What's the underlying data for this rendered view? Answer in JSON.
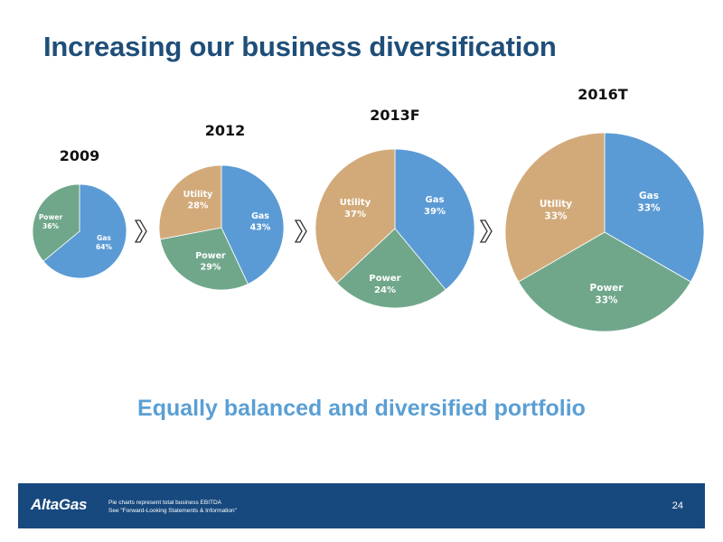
{
  "slide": {
    "title": "Increasing our business diversification",
    "subtitle": "Equally balanced and diversified portfolio",
    "page_number": "24"
  },
  "footer": {
    "logo_text": "AltaGas",
    "notes": [
      "Pie charts represent total business EBITDA",
      "See \"Forward-Looking Statements & Information\""
    ]
  },
  "colors": {
    "Gas": "#5b9bd5",
    "Power": "#70a78b",
    "Utility": "#d2aa7a",
    "title": "#1f4e79",
    "subtitle": "#5a9fd4",
    "footer_bar": "#17497e"
  },
  "chart_data": [
    {
      "type": "pie",
      "title": "2009",
      "slices": [
        {
          "label": "Gas",
          "value": 64,
          "display": "64%"
        },
        {
          "label": "Power",
          "value": 36,
          "display": "36%"
        }
      ]
    },
    {
      "type": "pie",
      "title": "2012",
      "slices": [
        {
          "label": "Gas",
          "value": 43,
          "display": "43%"
        },
        {
          "label": "Power",
          "value": 29,
          "display": "29%"
        },
        {
          "label": "Utility",
          "value": 28,
          "display": "28%"
        }
      ]
    },
    {
      "type": "pie",
      "title": "2013F",
      "slices": [
        {
          "label": "Gas",
          "value": 39,
          "display": "39%"
        },
        {
          "label": "Power",
          "value": 24,
          "display": "24%"
        },
        {
          "label": "Utility",
          "value": 37,
          "display": "37%"
        }
      ]
    },
    {
      "type": "pie",
      "title": "2016T",
      "slices": [
        {
          "label": "Gas",
          "value": 33,
          "display": "33%"
        },
        {
          "label": "Power",
          "value": 33,
          "display": "33%"
        },
        {
          "label": "Utility",
          "value": 33,
          "display": "33%"
        }
      ]
    }
  ],
  "icons": {
    "arrow": "chevron-right-icon"
  }
}
